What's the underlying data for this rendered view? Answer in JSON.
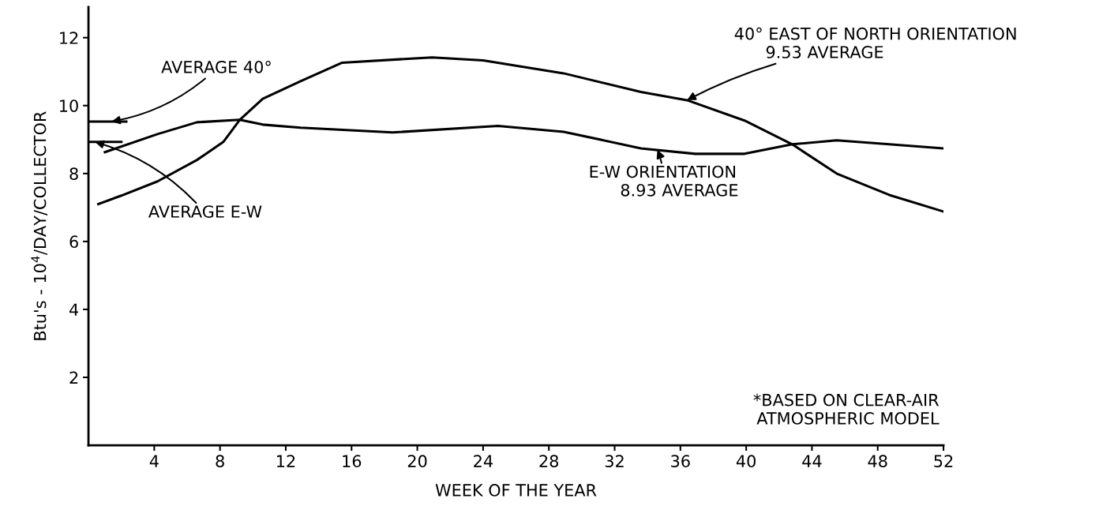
{
  "chart_data": {
    "type": "line",
    "xlabel": "WEEK OF THE YEAR",
    "ylabel": "Btu's - 10$^{4}$/DAY/COLLECTOR",
    "xlim": [
      0,
      52
    ],
    "xticks": [
      4,
      8,
      12,
      16,
      20,
      24,
      28,
      32,
      36,
      40,
      44,
      48,
      52
    ],
    "ylim": [
      0,
      12.9
    ],
    "yticks": [
      2,
      4,
      6,
      8,
      10,
      12
    ],
    "grid": false,
    "marker": "none",
    "line_style": "solid",
    "series": [
      {
        "color": "#000000",
        "x": [
          0.6,
          2,
          4.2,
          6.6,
          8.2,
          9.2,
          10.6,
          12.9,
          15.4,
          20.9,
          24,
          28.9,
          33.6,
          36.4,
          39.9,
          42.8,
          45.5,
          48.7,
          52
        ],
        "values": [
          7.1,
          7.35,
          7.77,
          8.4,
          8.93,
          9.58,
          10.2,
          10.72,
          11.26,
          11.42,
          11.33,
          10.95,
          10.4,
          10.16,
          9.56,
          8.86,
          8.0,
          7.37,
          6.88
        ]
      },
      {
        "color": "#000000",
        "x": [
          1.0,
          4.2,
          6.6,
          9.2,
          10.6,
          12.9,
          18.5,
          24.9,
          28.9,
          33.6,
          36.9,
          39.9,
          42.8,
          45.5,
          48.7,
          52
        ],
        "values": [
          8.63,
          9.16,
          9.51,
          9.58,
          9.44,
          9.35,
          9.21,
          9.4,
          9.23,
          8.74,
          8.58,
          8.58,
          8.86,
          8.98,
          8.86,
          8.74
        ]
      },
      {
        "color": "#000000",
        "x": [
          0,
          2.3
        ],
        "values": [
          9.53,
          9.53
        ]
      },
      {
        "color": "#000000",
        "x": [
          0,
          2.0
        ],
        "values": [
          8.93,
          8.93
        ]
      }
    ],
    "annotations": [
      {
        "text": "AVERAGE 40°",
        "x": 1.4,
        "y": 9.53
      },
      {
        "text": "AVERAGE E-W",
        "x": 0.4,
        "y": 8.93
      },
      {
        "text": "40° EAST OF NORTH ORIENTATION\n      9.53 AVERAGE",
        "x": 36.4,
        "y": 10.16
      },
      {
        "text": "E-W ORIENTATION\n      8.93 AVERAGE",
        "x": 34.6,
        "y": 8.7
      },
      "*BASED ON CLEAR-AIR\n  ATMOSPHERIC MODEL"
    ]
  }
}
